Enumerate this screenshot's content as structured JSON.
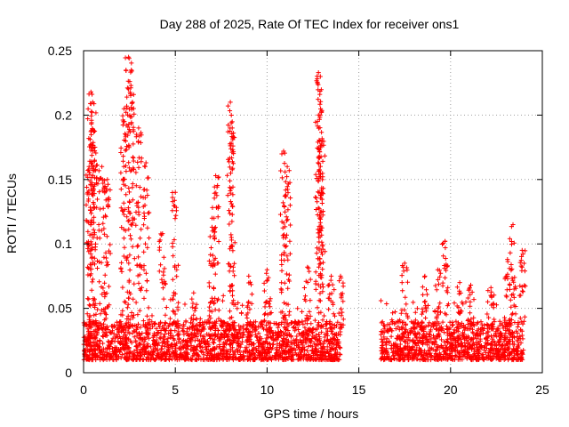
{
  "chart_data": {
    "type": "scatter",
    "title": "Day 288 of 2025, Rate Of TEC Index for receiver ons1",
    "xlabel": "GPS time / hours",
    "ylabel": "ROTI / TECUs",
    "xlim": [
      0,
      25
    ],
    "ylim": [
      0,
      0.25
    ],
    "xticks": [
      0,
      5,
      10,
      15,
      20,
      25
    ],
    "yticks": [
      0,
      0.05,
      0.1,
      0.15,
      0.2,
      0.25
    ],
    "xtick_labels": [
      "0",
      "5",
      "10",
      "15",
      "20",
      "25"
    ],
    "ytick_labels": [
      "0",
      "0.05",
      "0.1",
      "0.15",
      "0.2",
      "0.25"
    ],
    "grid": true,
    "marker": "+",
    "color": "#ff0000",
    "data_gap": [
      14.1,
      16.1
    ],
    "segments": [
      {
        "x_start": 0.0,
        "x_end": 14.0,
        "baseline_range": [
          0.01,
          0.04
        ]
      },
      {
        "x_start": 16.2,
        "x_end": 24.0,
        "baseline_range": [
          0.01,
          0.04
        ]
      }
    ],
    "spikes": [
      {
        "x": 0.3,
        "max": 0.16
      },
      {
        "x": 0.4,
        "max": 0.218
      },
      {
        "x": 0.5,
        "max": 0.21
      },
      {
        "x": 0.6,
        "max": 0.165
      },
      {
        "x": 1.0,
        "max": 0.16
      },
      {
        "x": 1.3,
        "max": 0.15
      },
      {
        "x": 2.2,
        "max": 0.205
      },
      {
        "x": 2.45,
        "max": 0.245
      },
      {
        "x": 2.6,
        "max": 0.235
      },
      {
        "x": 3.0,
        "max": 0.19
      },
      {
        "x": 3.4,
        "max": 0.163
      },
      {
        "x": 4.3,
        "max": 0.108
      },
      {
        "x": 5.0,
        "max": 0.14
      },
      {
        "x": 6.0,
        "max": 0.062
      },
      {
        "x": 7.0,
        "max": 0.12
      },
      {
        "x": 7.2,
        "max": 0.153
      },
      {
        "x": 8.0,
        "max": 0.21
      },
      {
        "x": 8.1,
        "max": 0.19
      },
      {
        "x": 9.0,
        "max": 0.075
      },
      {
        "x": 10.0,
        "max": 0.08
      },
      {
        "x": 10.9,
        "max": 0.172
      },
      {
        "x": 11.1,
        "max": 0.16
      },
      {
        "x": 12.2,
        "max": 0.082
      },
      {
        "x": 12.8,
        "max": 0.233
      },
      {
        "x": 12.9,
        "max": 0.23
      },
      {
        "x": 13.0,
        "max": 0.18
      },
      {
        "x": 13.5,
        "max": 0.075
      },
      {
        "x": 14.0,
        "max": 0.075
      },
      {
        "x": 17.5,
        "max": 0.085
      },
      {
        "x": 18.6,
        "max": 0.075
      },
      {
        "x": 19.3,
        "max": 0.08
      },
      {
        "x": 19.7,
        "max": 0.102
      },
      {
        "x": 20.5,
        "max": 0.07
      },
      {
        "x": 21.1,
        "max": 0.068
      },
      {
        "x": 22.2,
        "max": 0.066
      },
      {
        "x": 23.1,
        "max": 0.088
      },
      {
        "x": 23.4,
        "max": 0.115
      },
      {
        "x": 23.9,
        "max": 0.095
      }
    ]
  }
}
